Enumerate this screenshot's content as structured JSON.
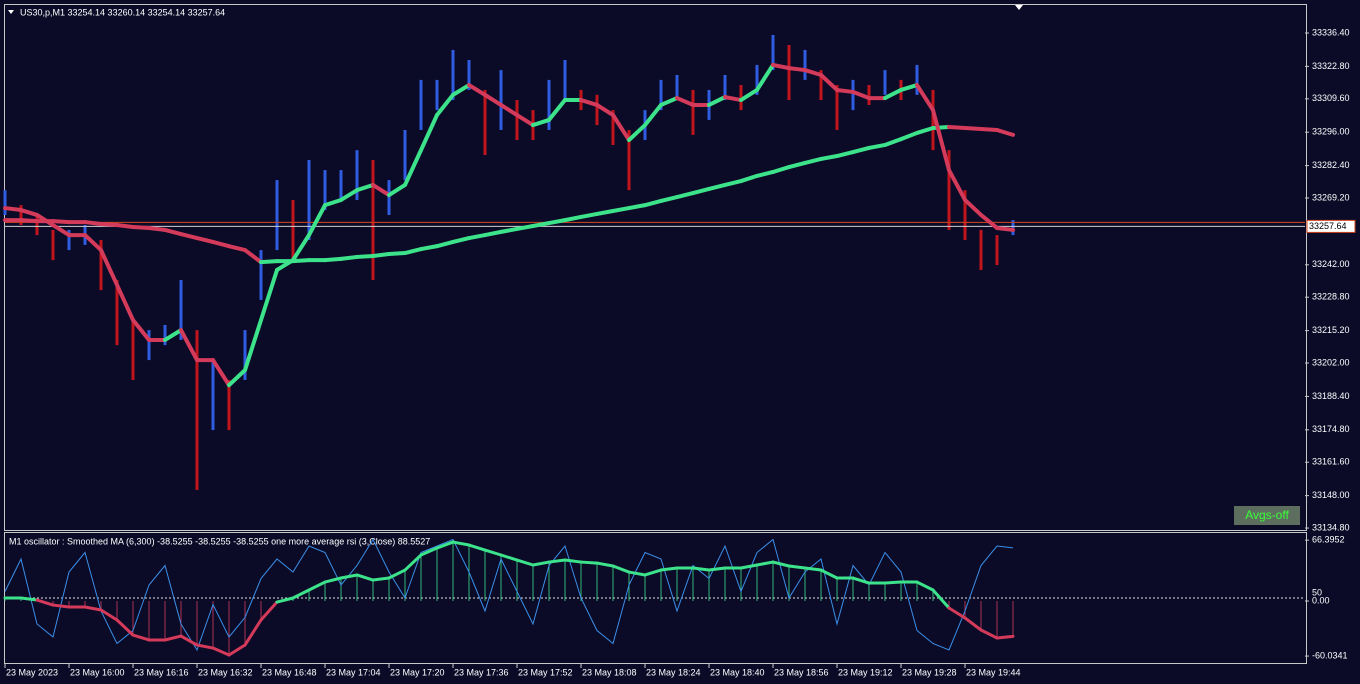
{
  "window": {
    "button": "Avgs-off"
  },
  "chart_data": [
    {
      "type": "candlestick",
      "title": "US30,p,M1  33254.14 33260.14 33254.14 33257.64",
      "x": [
        0,
        4,
        8,
        12,
        16,
        20,
        24,
        28,
        32,
        36,
        40,
        44,
        48,
        52,
        56,
        60,
        64,
        68,
        72,
        76,
        80,
        84,
        88,
        92,
        96,
        100,
        104,
        108,
        112,
        116,
        120,
        124,
        128,
        132,
        136,
        140,
        144,
        148,
        152,
        156,
        160,
        164,
        168,
        172,
        176,
        180,
        184,
        188,
        192,
        196,
        200,
        204,
        208,
        212,
        216,
        220,
        224,
        228,
        232,
        236,
        240,
        244,
        248,
        252
      ],
      "high": [
        33272.4,
        33266.3,
        33262.3,
        33256.2,
        33256.2,
        33258.2,
        33252.1,
        33235.8,
        33219.5,
        33215.4,
        33217.5,
        33235.8,
        33215.4,
        33203.2,
        33195.1,
        33215.4,
        33248.0,
        33276.5,
        33268.4,
        33284.7,
        33280.6,
        33280.6,
        33288.7,
        33284.7,
        33276.5,
        33296.9,
        33317.3,
        33317.3,
        33329.5,
        33325.4,
        33313.2,
        33321.3,
        33309.1,
        33305.0,
        33317.3,
        33325.4,
        33313.2,
        33311.2,
        33305.0,
        33296.9,
        33305.0,
        33317.3,
        33319.3,
        33313.2,
        33313.2,
        33319.3,
        33315.2,
        33323.4,
        33335.6,
        33331.5,
        33329.5,
        33321.3,
        33315.2,
        33317.3,
        33315.2,
        33321.3,
        33317.3,
        33323.4,
        33313.2,
        33288.7,
        33272.4,
        33256.2,
        33254.1,
        33260.2
      ],
      "low": [
        33262.3,
        33258.2,
        33254.1,
        33243.9,
        33248.0,
        33250.1,
        33231.7,
        33209.3,
        33195.1,
        33203.2,
        33209.3,
        33211.4,
        33150.3,
        33174.7,
        33174.7,
        33195.1,
        33227.7,
        33248.0,
        33243.9,
        33252.1,
        33264.3,
        33268.4,
        33268.4,
        33235.8,
        33262.3,
        33276.5,
        33296.9,
        33305.0,
        33309.1,
        33313.2,
        33286.7,
        33296.9,
        33292.8,
        33292.8,
        33296.9,
        33309.1,
        33305.0,
        33298.9,
        33290.8,
        33272.4,
        33292.8,
        33305.0,
        33309.1,
        33294.9,
        33301.0,
        33309.1,
        33305.0,
        33311.2,
        33321.3,
        33309.1,
        33317.3,
        33309.1,
        33296.9,
        33305.0,
        33307.1,
        33311.2,
        33309.1,
        33311.2,
        33288.7,
        33256.2,
        33252.1,
        33239.9,
        33241.9,
        33254.1
      ],
      "fast_ma": [
        33265.1,
        33264.3,
        33262.3,
        33258.2,
        33254.1,
        33254.1,
        33248.0,
        33233.8,
        33219.5,
        33211.4,
        33211.4,
        33215.4,
        33203.2,
        33203.2,
        33193.0,
        33199.1,
        33219.5,
        33239.9,
        33243.9,
        33254.1,
        33266.3,
        33268.4,
        33272.4,
        33274.5,
        33270.4,
        33274.5,
        33288.7,
        33303.0,
        33311.2,
        33315.2,
        33311.2,
        33307.1,
        33303.0,
        33298.9,
        33301.0,
        33309.1,
        33309.1,
        33307.1,
        33303.0,
        33292.8,
        33298.9,
        33307.1,
        33309.9,
        33307.1,
        33307.1,
        33310.3,
        33309.1,
        33313.2,
        33323.4,
        33322.1,
        33321.3,
        33319.3,
        33313.2,
        33312.4,
        33309.9,
        33309.9,
        33313.2,
        33315.2,
        33305.0,
        33280.6,
        33268.4,
        33262.3,
        33257.0,
        33256.2
      ],
      "slow_ma": [
        33260.2,
        33260.2,
        33259.8,
        33259.8,
        33259.4,
        33259.4,
        33258.6,
        33258.2,
        33257.4,
        33257.0,
        33256.2,
        33254.5,
        33252.9,
        33251.3,
        33249.6,
        33248.0,
        33243.1,
        33243.5,
        33243.5,
        33243.9,
        33243.9,
        33244.4,
        33245.2,
        33245.6,
        33246.4,
        33246.8,
        33248.4,
        33249.6,
        33251.3,
        33252.9,
        33254.1,
        33255.4,
        33256.6,
        33257.8,
        33259.0,
        33260.2,
        33261.5,
        33262.7,
        33263.9,
        33265.1,
        33266.3,
        33268.0,
        33269.6,
        33271.2,
        33272.9,
        33274.5,
        33276.1,
        33278.2,
        33279.8,
        33281.8,
        33283.5,
        33285.1,
        33286.3,
        33287.9,
        33289.6,
        33290.8,
        33293.2,
        33295.7,
        33297.7,
        33298.1,
        33297.7,
        33297.3,
        33296.9,
        33294.9
      ],
      "up_color": "#2f5ce0",
      "down_color": "#c2141c",
      "ma_up_color": "#3de38a",
      "ma_down_color": "#d43a5a",
      "price_line": {
        "value": 33257.64,
        "label": "33257.64"
      },
      "ask_line": 33259.3,
      "xlim": [
        0,
        325
      ],
      "ylim": [
        33134.0,
        33347.8
      ],
      "yticks": [
        {
          "value": 33336.4,
          "label": "33336.40"
        },
        {
          "value": 33322.8,
          "label": "33322.80"
        },
        {
          "value": 33309.6,
          "label": "33309.60"
        },
        {
          "value": 33296,
          "label": "33296.00"
        },
        {
          "value": 33282.4,
          "label": "33282.40"
        },
        {
          "value": 33269.2,
          "label": "33269.20"
        },
        {
          "value": 33242,
          "label": "33242.00"
        },
        {
          "value": 33228.8,
          "label": "33228.80"
        },
        {
          "value": 33215.2,
          "label": "33215.20"
        },
        {
          "value": 33202,
          "label": "33202.00"
        },
        {
          "value": 33188.4,
          "label": "33188.40"
        },
        {
          "value": 33174.8,
          "label": "33174.80"
        },
        {
          "value": 33161.6,
          "label": "33161.60"
        },
        {
          "value": 33148,
          "label": "33148.00"
        },
        {
          "value": 33134.8,
          "label": "33134.80"
        }
      ],
      "xticks": [
        {
          "value": 0,
          "label": "23 May 2023"
        },
        {
          "value": 16,
          "label": "23 May 16:00"
        },
        {
          "value": 32,
          "label": "23 May 16:16"
        },
        {
          "value": 48,
          "label": "23 May 16:32"
        },
        {
          "value": 64,
          "label": "23 May 16:48"
        },
        {
          "value": 80,
          "label": "23 May 17:04"
        },
        {
          "value": 96,
          "label": "23 May 17:20"
        },
        {
          "value": 112,
          "label": "23 May 17:36"
        },
        {
          "value": 128,
          "label": "23 May 17:52"
        },
        {
          "value": 144,
          "label": "23 May 18:08"
        },
        {
          "value": 160,
          "label": "23 May 18:24"
        },
        {
          "value": 176,
          "label": "23 May 18:40"
        },
        {
          "value": 192,
          "label": "23 May 18:56"
        },
        {
          "value": 208,
          "label": "23 May 19:12"
        },
        {
          "value": 224,
          "label": "23 May 19:28"
        },
        {
          "value": 240,
          "label": "23 May 19:44"
        }
      ]
    },
    {
      "type": "oscillator",
      "title": "M1  oscillator :  Smoothed MA (6,300)  -38.5255 -38.5255 -38.5255  one more average rsi (3,Close) 88.5527",
      "x": [
        0,
        4,
        8,
        12,
        16,
        20,
        24,
        28,
        32,
        36,
        40,
        44,
        48,
        52,
        56,
        60,
        64,
        68,
        72,
        76,
        80,
        84,
        88,
        92,
        96,
        100,
        104,
        108,
        112,
        116,
        120,
        124,
        128,
        132,
        136,
        140,
        144,
        148,
        152,
        156,
        160,
        164,
        168,
        172,
        176,
        180,
        184,
        188,
        192,
        196,
        200,
        204,
        208,
        212,
        216,
        220,
        224,
        228,
        232,
        236,
        240,
        244,
        248,
        252
      ],
      "series": [
        {
          "values": [
            3.3,
            3.3,
            1.1,
            -4.4,
            -6.5,
            -6.5,
            -9.8,
            -20.7,
            -37.1,
            -42.5,
            -42.5,
            -38.2,
            -48.0,
            -51.3,
            -58.9,
            -48.0,
            -20.7,
            -1.1,
            3.3,
            12.0,
            20.7,
            25.1,
            28.4,
            22.9,
            25.1,
            33.8,
            50.2,
            57.8,
            64.3,
            61.1,
            55.6,
            50.2,
            44.7,
            39.3,
            42.5,
            44.7,
            42.5,
            41.4,
            38.2,
            31.6,
            28.4,
            33.8,
            36.0,
            36.0,
            33.8,
            36.0,
            36.0,
            39.3,
            42.5,
            38.2,
            36.0,
            33.8,
            25.1,
            25.1,
            19.6,
            19.6,
            20.7,
            20.7,
            12.0,
            -7.6,
            -18.5,
            -31.6,
            -40.3,
            -38.5
          ]
        },
        {
          "color": "#3a8fe8",
          "axis": "y2",
          "values": [
            55,
            80,
            30,
            20,
            70,
            85,
            40,
            15,
            25,
            60,
            75,
            30,
            10,
            45,
            20,
            35,
            65,
            80,
            70,
            90,
            85,
            60,
            75,
            95,
            70,
            50,
            85,
            90,
            95,
            70,
            40,
            80,
            55,
            30,
            75,
            90,
            50,
            25,
            15,
            60,
            85,
            80,
            40,
            75,
            65,
            90,
            55,
            85,
            95,
            50,
            70,
            80,
            30,
            75,
            60,
            85,
            70,
            25,
            15,
            10,
            40,
            75,
            90,
            88.6
          ]
        }
      ],
      "up_color": "#3de38a",
      "down_color": "#d43a5a",
      "xlim": [
        0,
        325
      ],
      "ylim": [
        -67.6,
        74.2
      ],
      "yticks": [
        66.3952,
        {
          "value": 0,
          "label": "0.00"
        },
        -60.0341
      ],
      "y2lim": [
        0,
        100
      ],
      "y2ticks": [
        50
      ]
    }
  ]
}
